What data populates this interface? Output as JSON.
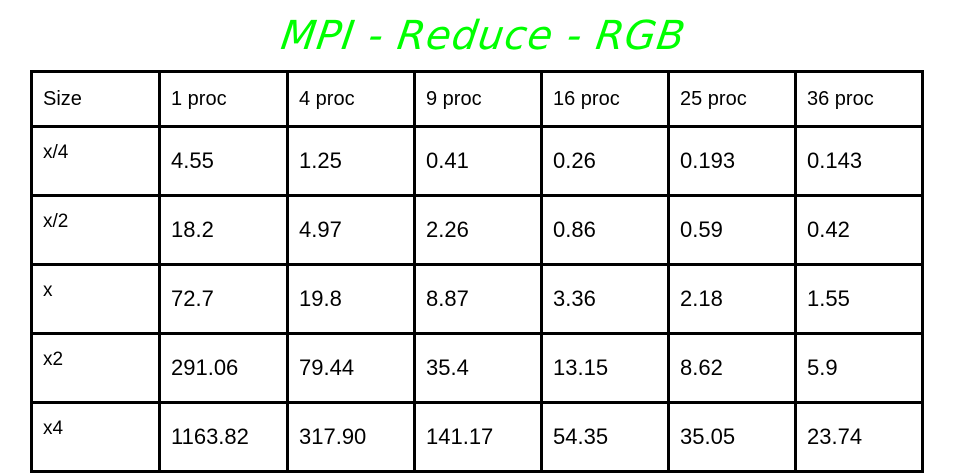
{
  "title": "MPI - Reduce - RGB",
  "table": {
    "columns": [
      "Size",
      "1 proc",
      "4 proc",
      "9 proc",
      "16 proc",
      "25 proc",
      "36 proc"
    ],
    "rows": [
      [
        "x/4",
        "4.55",
        "1.25",
        "0.41",
        "0.26",
        "0.193",
        "0.143"
      ],
      [
        "x/2",
        "18.2",
        "4.97",
        "2.26",
        "0.86",
        "0.59",
        "0.42"
      ],
      [
        "x",
        "72.7",
        "19.8",
        "8.87",
        "3.36",
        "2.18",
        "1.55"
      ],
      [
        "x2",
        "291.06",
        "79.44",
        "35.4",
        "13.15",
        "8.62",
        "5.9"
      ],
      [
        "x4",
        "1163.82",
        "317.90",
        "141.17",
        "54.35",
        "35.05",
        "23.74"
      ]
    ]
  },
  "colors": {
    "title": "#00ff00",
    "border": "#000000",
    "text": "#000000",
    "background": "#ffffff"
  }
}
